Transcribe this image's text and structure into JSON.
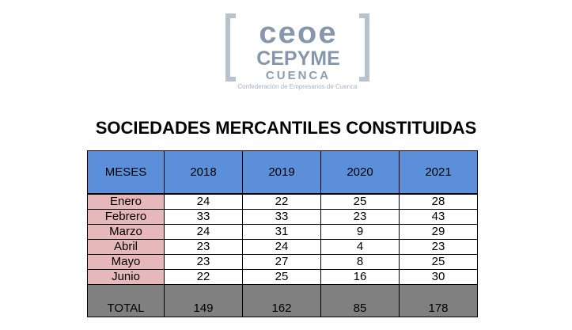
{
  "logo": {
    "line1": "ceoe",
    "line2": "CEPYME",
    "line3": "CUENCA",
    "subtitle": "Confederación de Empresarios de Cuenca",
    "color": "#8696ab"
  },
  "chart_data": {
    "type": "table",
    "title": "SOCIEDADES MERCANTILES CONSTITUIDAS",
    "header_label": "MESES",
    "columns": [
      "2018",
      "2019",
      "2020",
      "2021"
    ],
    "rows": [
      {
        "label": "Enero",
        "values": [
          "24",
          "22",
          "25",
          "28"
        ]
      },
      {
        "label": "Febrero",
        "values": [
          "33",
          "33",
          "23",
          "43"
        ]
      },
      {
        "label": "Marzo",
        "values": [
          "24",
          "31",
          "9",
          "29"
        ]
      },
      {
        "label": "Abril",
        "values": [
          "23",
          "24",
          "4",
          "23"
        ]
      },
      {
        "label": "Mayo",
        "values": [
          "23",
          "27",
          "8",
          "25"
        ]
      },
      {
        "label": "Junio",
        "values": [
          "22",
          "25",
          "16",
          "30"
        ]
      }
    ],
    "total": {
      "label": "TOTAL",
      "values": [
        "149",
        "162",
        "85",
        "178"
      ]
    },
    "colors": {
      "header": "#5b8fd9",
      "month_label": "#e6b8b9",
      "total": "#808080"
    }
  }
}
